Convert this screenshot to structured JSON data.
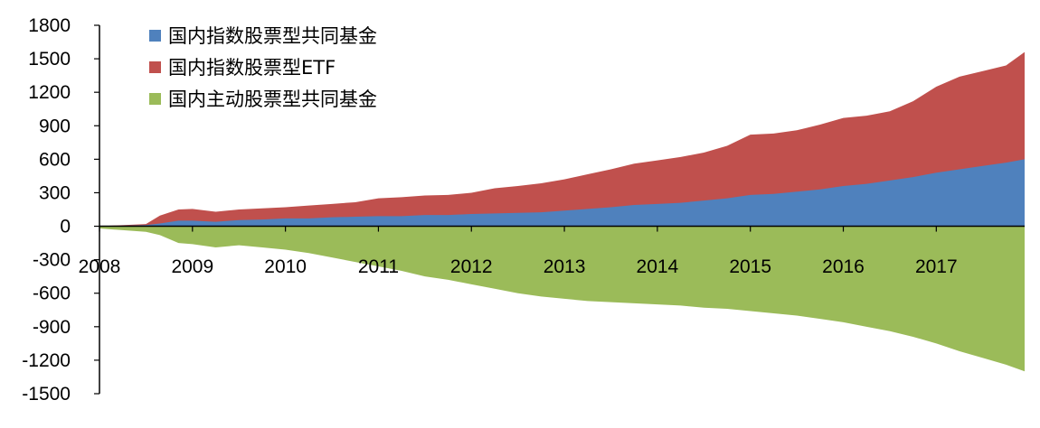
{
  "chart_data": {
    "type": "area",
    "title": "",
    "xlabel": "",
    "ylabel": "",
    "ylim": [
      -1500,
      1800
    ],
    "yticks": [
      1800,
      1500,
      1200,
      900,
      600,
      300,
      0,
      -300,
      -600,
      -900,
      -1200,
      -1500
    ],
    "ytick_labels": [
      "1800",
      "1500",
      "1200",
      "900",
      "600",
      "300",
      "0",
      "-300",
      "-600",
      "-900",
      "-1200",
      "-1500"
    ],
    "xlim": [
      2008.0,
      2017.95
    ],
    "xtick_labels": [
      {
        "label": "2008",
        "value": 2008.0
      },
      {
        "label": "2009",
        "value": 2009.0
      },
      {
        "label": "2010",
        "value": 2010.0
      },
      {
        "label": "2011",
        "value": 2011.0
      },
      {
        "label": "2012",
        "value": 2012.0
      },
      {
        "label": "2013",
        "value": 2013.0
      },
      {
        "label": "2014",
        "value": 2014.0
      },
      {
        "label": "2015",
        "value": 2015.0
      },
      {
        "label": "2016",
        "value": 2016.0
      },
      {
        "label": "2017",
        "value": 2017.0
      }
    ],
    "legend_position": "top-left",
    "grid": false,
    "x": [
      2008.0,
      2008.5,
      2008.65,
      2008.85,
      2009.0,
      2009.25,
      2009.5,
      2009.75,
      2010.0,
      2010.25,
      2010.5,
      2010.75,
      2011.0,
      2011.25,
      2011.5,
      2011.75,
      2012.0,
      2012.25,
      2012.5,
      2012.75,
      2013.0,
      2013.25,
      2013.5,
      2013.75,
      2014.0,
      2014.25,
      2014.5,
      2014.75,
      2015.0,
      2015.25,
      2015.5,
      2015.75,
      2016.0,
      2016.25,
      2016.5,
      2016.75,
      2017.0,
      2017.25,
      2017.5,
      2017.75,
      2017.95
    ],
    "series": [
      {
        "name": "国内指数股票型共同基金",
        "color": "#4f81bd",
        "stack": "positive",
        "values": [
          0,
          10,
          25,
          50,
          50,
          40,
          55,
          60,
          70,
          70,
          80,
          85,
          90,
          90,
          100,
          100,
          110,
          115,
          120,
          125,
          140,
          155,
          170,
          190,
          200,
          210,
          230,
          250,
          280,
          290,
          310,
          330,
          360,
          380,
          410,
          440,
          480,
          510,
          540,
          570,
          600
        ]
      },
      {
        "name": "国内指数股票型ETF",
        "color": "#c0504d",
        "stack": "positive",
        "values": [
          0,
          10,
          70,
          100,
          105,
          90,
          95,
          100,
          100,
          115,
          120,
          130,
          160,
          170,
          175,
          180,
          190,
          225,
          240,
          260,
          280,
          310,
          340,
          370,
          390,
          410,
          430,
          470,
          540,
          540,
          550,
          580,
          610,
          610,
          620,
          680,
          770,
          830,
          850,
          870,
          960
        ]
      },
      {
        "name": "国内主动股票型共同基金",
        "color": "#9bbb59",
        "stack": "negative",
        "values": [
          -20,
          -50,
          -80,
          -150,
          -160,
          -190,
          -170,
          -190,
          -210,
          -240,
          -280,
          -320,
          -360,
          -400,
          -450,
          -480,
          -520,
          -560,
          -600,
          -630,
          -650,
          -670,
          -680,
          -690,
          -700,
          -710,
          -730,
          -740,
          -760,
          -780,
          -800,
          -830,
          -860,
          -900,
          -940,
          -990,
          -1050,
          -1120,
          -1180,
          -1240,
          -1300
        ]
      }
    ]
  }
}
